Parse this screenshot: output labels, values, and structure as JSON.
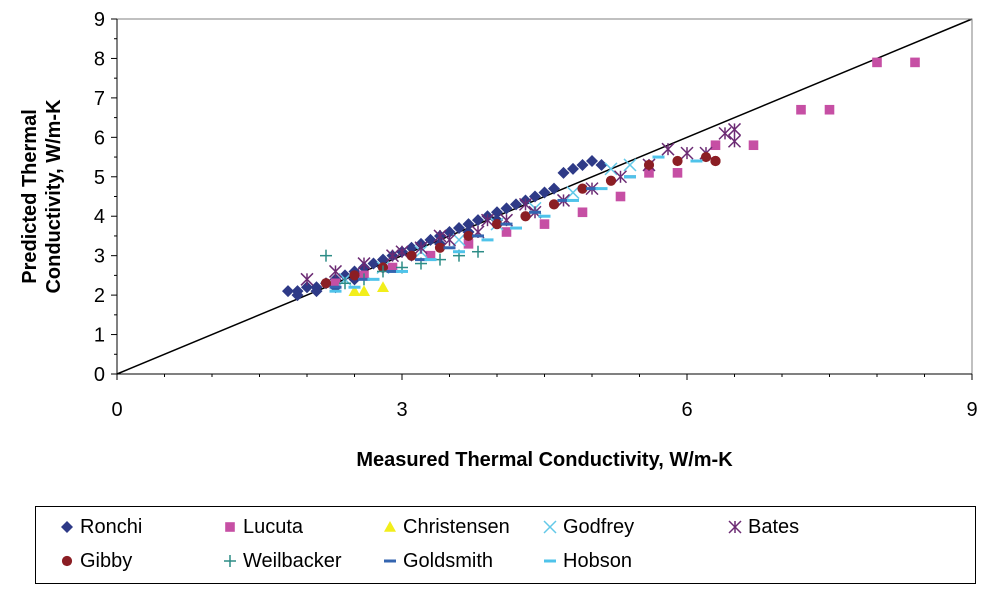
{
  "chart_data": {
    "type": "scatter",
    "title": "",
    "xlabel": "Measured Thermal Conductivity, W/m-K",
    "ylabel": "Predicted Thermal Conductivity, W/m-K",
    "xlim": [
      0,
      9
    ],
    "ylim": [
      0,
      9
    ],
    "x_ticks": [
      "0",
      "3",
      "6",
      "9"
    ],
    "y_ticks": [
      "0",
      "1",
      "2",
      "3",
      "4",
      "5",
      "6",
      "7",
      "8",
      "9"
    ],
    "reference_line": {
      "x": [
        0,
        9
      ],
      "y": [
        0,
        9
      ],
      "color": "#000000"
    },
    "legend_position": "bottom",
    "series": [
      {
        "name": "Ronchi",
        "marker": "diamond",
        "color": "#2E3A87",
        "points": [
          [
            1.8,
            2.1
          ],
          [
            1.9,
            2.1
          ],
          [
            2.0,
            2.2
          ],
          [
            2.1,
            2.2
          ],
          [
            2.2,
            2.3
          ],
          [
            2.3,
            2.4
          ],
          [
            2.4,
            2.5
          ],
          [
            2.5,
            2.6
          ],
          [
            2.6,
            2.7
          ],
          [
            2.7,
            2.8
          ],
          [
            2.8,
            2.9
          ],
          [
            2.9,
            3.0
          ],
          [
            3.0,
            3.1
          ],
          [
            3.1,
            3.2
          ],
          [
            3.2,
            3.3
          ],
          [
            3.3,
            3.4
          ],
          [
            3.4,
            3.5
          ],
          [
            3.5,
            3.6
          ],
          [
            3.6,
            3.7
          ],
          [
            3.7,
            3.8
          ],
          [
            3.8,
            3.9
          ],
          [
            3.9,
            4.0
          ],
          [
            4.0,
            4.1
          ],
          [
            4.1,
            4.2
          ],
          [
            4.2,
            4.3
          ],
          [
            4.3,
            4.4
          ],
          [
            4.4,
            4.5
          ],
          [
            4.5,
            4.6
          ],
          [
            4.6,
            4.7
          ],
          [
            4.7,
            5.1
          ],
          [
            4.8,
            5.2
          ],
          [
            4.9,
            5.3
          ],
          [
            5.0,
            5.4
          ],
          [
            5.1,
            5.3
          ],
          [
            1.9,
            2.0
          ],
          [
            2.1,
            2.1
          ],
          [
            2.3,
            2.2
          ],
          [
            2.5,
            2.4
          ],
          [
            2.8,
            2.7
          ],
          [
            3.1,
            3.0
          ],
          [
            3.4,
            3.3
          ],
          [
            3.7,
            3.6
          ],
          [
            4.0,
            3.9
          ]
        ]
      },
      {
        "name": "Lucuta",
        "marker": "square",
        "color": "#C64FA4",
        "points": [
          [
            2.3,
            2.3
          ],
          [
            2.6,
            2.5
          ],
          [
            2.9,
            2.7
          ],
          [
            3.3,
            3.0
          ],
          [
            3.7,
            3.3
          ],
          [
            4.1,
            3.6
          ],
          [
            4.5,
            3.8
          ],
          [
            4.9,
            4.1
          ],
          [
            5.3,
            4.5
          ],
          [
            5.6,
            5.1
          ],
          [
            5.9,
            5.1
          ],
          [
            6.3,
            5.8
          ],
          [
            6.7,
            5.8
          ],
          [
            7.2,
            6.7
          ],
          [
            7.5,
            6.7
          ],
          [
            8.0,
            7.9
          ],
          [
            8.4,
            7.9
          ]
        ]
      },
      {
        "name": "Christensen",
        "marker": "triangle",
        "color": "#F2EE1B",
        "points": [
          [
            2.5,
            2.1
          ],
          [
            2.6,
            2.1
          ],
          [
            2.8,
            2.2
          ]
        ]
      },
      {
        "name": "Godfrey",
        "marker": "x",
        "color": "#63C9E8",
        "points": [
          [
            2.4,
            2.4
          ],
          [
            2.8,
            2.7
          ],
          [
            3.2,
            3.1
          ],
          [
            3.6,
            3.4
          ],
          [
            4.0,
            3.8
          ],
          [
            4.4,
            4.2
          ],
          [
            4.8,
            4.6
          ],
          [
            5.2,
            5.2
          ],
          [
            5.4,
            5.3
          ]
        ]
      },
      {
        "name": "Bates",
        "marker": "star",
        "color": "#6B2A73",
        "points": [
          [
            2.0,
            2.4
          ],
          [
            2.3,
            2.6
          ],
          [
            2.6,
            2.8
          ],
          [
            2.9,
            3.0
          ],
          [
            3.2,
            3.2
          ],
          [
            3.5,
            3.4
          ],
          [
            3.8,
            3.6
          ],
          [
            4.1,
            3.9
          ],
          [
            4.4,
            4.1
          ],
          [
            4.7,
            4.4
          ],
          [
            5.0,
            4.7
          ],
          [
            5.3,
            5.0
          ],
          [
            5.6,
            5.3
          ],
          [
            5.8,
            5.7
          ],
          [
            6.0,
            5.6
          ],
          [
            6.2,
            5.6
          ],
          [
            6.4,
            6.1
          ],
          [
            6.5,
            5.9
          ],
          [
            6.5,
            6.2
          ],
          [
            3.0,
            3.1
          ],
          [
            3.4,
            3.5
          ],
          [
            3.9,
            3.9
          ],
          [
            4.3,
            4.3
          ]
        ]
      },
      {
        "name": "Gibby",
        "marker": "circle",
        "color": "#8B1E24",
        "points": [
          [
            2.2,
            2.3
          ],
          [
            2.5,
            2.5
          ],
          [
            2.8,
            2.7
          ],
          [
            3.1,
            3.0
          ],
          [
            3.4,
            3.2
          ],
          [
            3.7,
            3.5
          ],
          [
            4.0,
            3.8
          ],
          [
            4.3,
            4.0
          ],
          [
            4.6,
            4.3
          ],
          [
            4.9,
            4.7
          ],
          [
            5.2,
            4.9
          ],
          [
            5.6,
            5.3
          ],
          [
            5.9,
            5.4
          ],
          [
            6.2,
            5.5
          ],
          [
            6.3,
            5.4
          ],
          [
            6.3,
            5.4
          ]
        ]
      },
      {
        "name": "Weilbacker",
        "marker": "plus",
        "color": "#2C8C86",
        "points": [
          [
            2.2,
            3.0
          ],
          [
            2.4,
            2.3
          ],
          [
            2.6,
            2.4
          ],
          [
            2.8,
            2.6
          ],
          [
            3.0,
            2.7
          ],
          [
            3.2,
            2.8
          ],
          [
            3.4,
            2.9
          ],
          [
            3.6,
            3.0
          ],
          [
            3.8,
            3.1
          ]
        ]
      },
      {
        "name": "Goldsmith",
        "marker": "dash",
        "color": "#3465B0",
        "points": [
          [
            2.3,
            2.2
          ],
          [
            2.6,
            2.4
          ],
          [
            2.9,
            2.6
          ],
          [
            3.2,
            2.9
          ],
          [
            3.5,
            3.2
          ],
          [
            3.8,
            3.5
          ],
          [
            4.1,
            3.8
          ],
          [
            4.4,
            4.1
          ],
          [
            4.7,
            4.4
          ],
          [
            5.0,
            4.7
          ],
          [
            5.4,
            5.0
          ]
        ]
      },
      {
        "name": "Hobson",
        "marker": "dash",
        "color": "#4FC3EA",
        "points": [
          [
            2.3,
            2.1
          ],
          [
            2.5,
            2.2
          ],
          [
            2.7,
            2.4
          ],
          [
            3.0,
            2.6
          ],
          [
            3.3,
            2.9
          ],
          [
            3.6,
            3.1
          ],
          [
            3.9,
            3.4
          ],
          [
            4.2,
            3.7
          ],
          [
            4.5,
            4.0
          ],
          [
            4.8,
            4.4
          ],
          [
            5.1,
            4.7
          ],
          [
            5.4,
            5.0
          ],
          [
            5.7,
            5.5
          ],
          [
            6.1,
            5.4
          ]
        ]
      }
    ]
  }
}
